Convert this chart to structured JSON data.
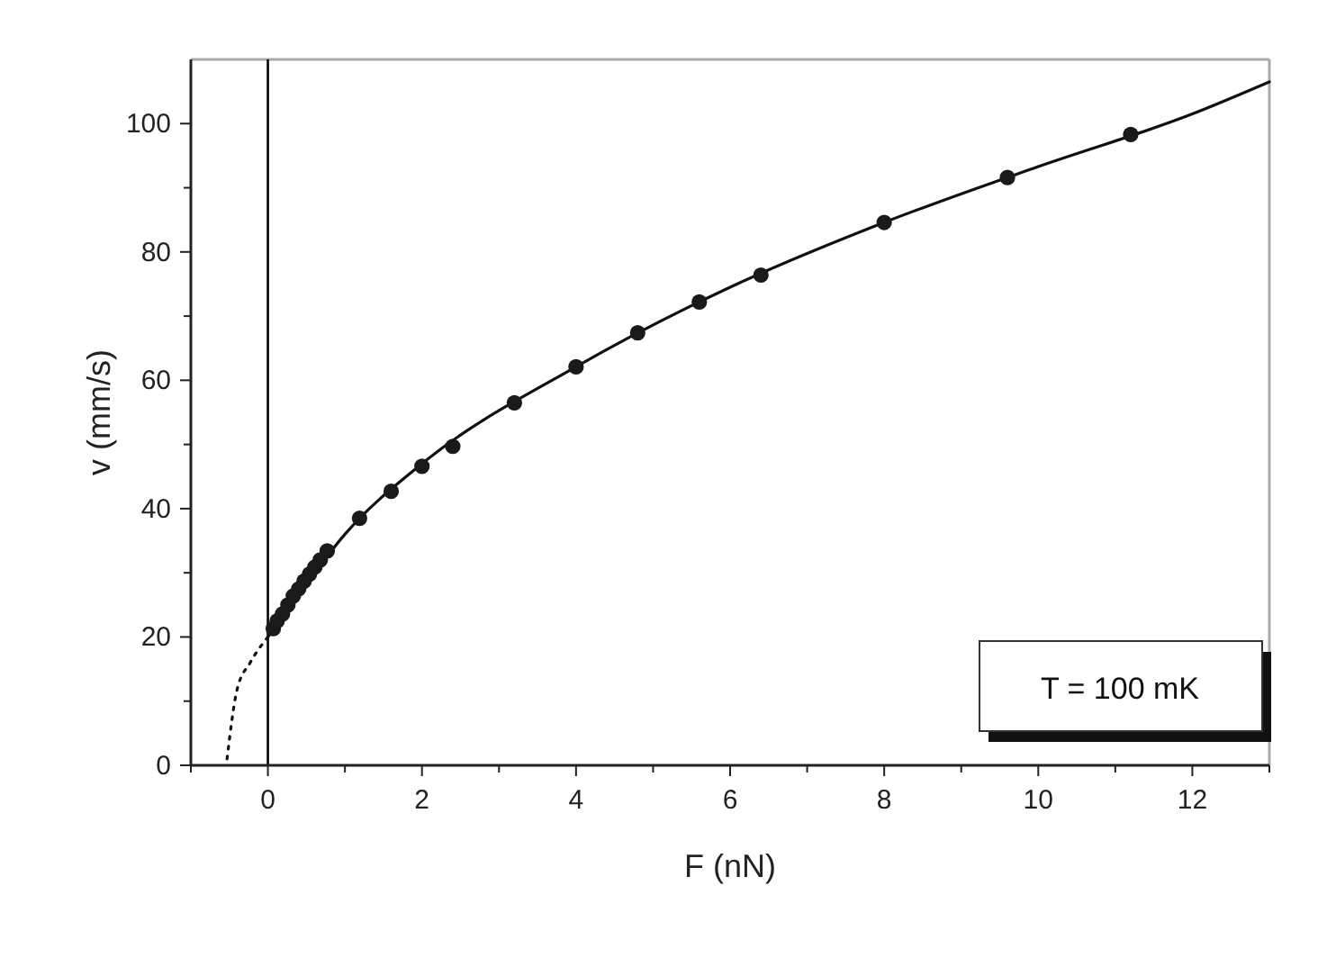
{
  "chart_data": {
    "type": "scatter",
    "xlabel": "F (nN)",
    "ylabel": "v (mm/s)",
    "annotations": [
      "T = 100 mK"
    ],
    "xlim": [
      -1,
      13
    ],
    "ylim": [
      0,
      110
    ],
    "xticks": [
      {
        "value": -1,
        "label": null
      },
      0,
      {
        "value": 1,
        "label": null
      },
      2,
      {
        "value": 3,
        "label": null
      },
      4,
      {
        "value": 5,
        "label": null
      },
      6,
      {
        "value": 7,
        "label": null
      },
      8,
      {
        "value": 9,
        "label": null
      },
      10,
      {
        "value": 11,
        "label": null
      },
      12,
      {
        "value": 13,
        "label": null
      }
    ],
    "yticks": [
      0,
      {
        "value": 10,
        "label": null
      },
      20,
      {
        "value": 30,
        "label": null
      },
      40,
      {
        "value": 50,
        "label": null
      },
      60,
      {
        "value": 70,
        "label": null
      },
      80,
      {
        "value": 90,
        "label": null
      },
      100
    ],
    "ref_lines": [
      {
        "axis": "x",
        "value": 0,
        "color": "#000000"
      }
    ],
    "series": [
      {
        "type": "line",
        "color": "#111111",
        "line_style": "solid",
        "x": [
          0,
          0.5,
          1,
          2,
          4,
          6,
          8,
          10,
          12,
          13
        ],
        "values": [
          20,
          28.3,
          36,
          47,
          62.1,
          74.5,
          84.6,
          93.3,
          101.5,
          106.5
        ]
      },
      {
        "type": "line",
        "color": "#111111",
        "line_style": "dotted",
        "x": [
          -0.53,
          -0.4,
          -0.23,
          0
        ],
        "values": [
          1,
          11.8,
          16,
          20
        ]
      },
      {
        "color": "#1a1a1a",
        "marker": "circle",
        "x": [
          0.07,
          0.12,
          0.19,
          0.26,
          0.33,
          0.4,
          0.47,
          0.54,
          0.61,
          0.68,
          0.77,
          1.19,
          1.6,
          2.0,
          2.4,
          3.2,
          4.0,
          4.8,
          5.6,
          6.4,
          8.0,
          9.6,
          11.2
        ],
        "values": [
          21.3,
          22.5,
          23.6,
          25,
          26.4,
          27.5,
          28.7,
          29.8,
          30.9,
          32,
          33.4,
          38.5,
          42.7,
          46.6,
          49.7,
          56.5,
          62.1,
          67.4,
          72.2,
          76.4,
          84.6,
          91.6,
          98.3
        ]
      }
    ]
  }
}
